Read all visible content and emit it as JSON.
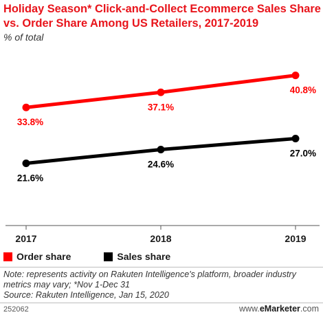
{
  "header": {
    "title": "Holiday Season* Click-and-Collect Ecommerce Sales Share vs. Order Share Among US Retailers, 2017-2019",
    "subtitle": "% of total"
  },
  "chart_data": {
    "type": "line",
    "x": [
      "2017",
      "2018",
      "2019"
    ],
    "series": [
      {
        "name": "Order share",
        "values": [
          33.8,
          37.1,
          40.8
        ],
        "labels": [
          "33.8%",
          "37.1%",
          "40.8%"
        ],
        "color": "#ff0000"
      },
      {
        "name": "Sales share",
        "values": [
          21.6,
          24.6,
          27.0
        ],
        "labels": [
          "21.6%",
          "24.6%",
          "27.0%"
        ],
        "color": "#000000"
      }
    ],
    "ylim": [
      8,
      46
    ],
    "grid": false,
    "legend": "bottom-left"
  },
  "legend": {
    "items": [
      {
        "label": "Order share",
        "color": "#ff0000"
      },
      {
        "label": "Sales share",
        "color": "#000000"
      }
    ]
  },
  "footer": {
    "note": "Note: represents activity on Rakuten Intelligence's platform, broader industry metrics may vary; *Nov 1-Dec 31",
    "source": "Source: Rakuten Intelligence, Jan 15, 2020",
    "id": "252062",
    "brand_prefix": "www.",
    "brand_name": "eMarketer",
    "brand_suffix": ".com"
  }
}
